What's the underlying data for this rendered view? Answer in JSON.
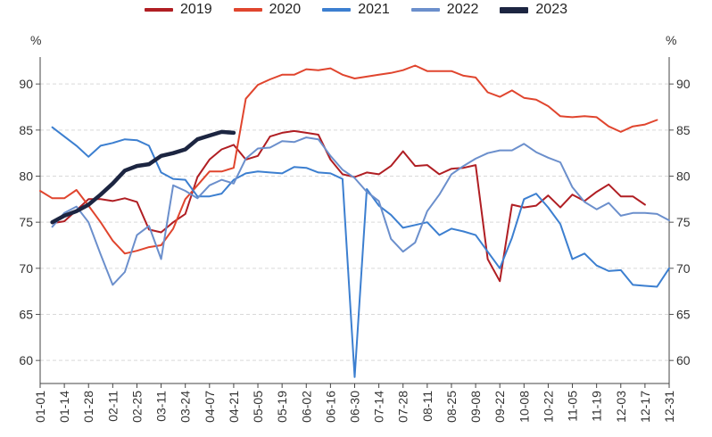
{
  "chart_data": {
    "type": "line",
    "title": "",
    "ylabel_left": "%",
    "ylabel_right": "%",
    "ylim": [
      57.5,
      93.5
    ],
    "yticks": [
      60,
      65,
      70,
      75,
      80,
      85,
      90
    ],
    "grid": "horizontal-dashed",
    "legend_position": "top-center",
    "x_tick_labels": [
      "01-01",
      "01-14",
      "01-28",
      "02-11",
      "02-25",
      "03-11",
      "03-24",
      "04-07",
      "04-21",
      "05-05",
      "05-19",
      "06-02",
      "06-16",
      "06-30",
      "07-14",
      "07-28",
      "08-11",
      "08-25",
      "09-08",
      "09-22",
      "10-08",
      "10-22",
      "11-05",
      "11-19",
      "12-03",
      "12-17",
      "12-31"
    ],
    "series": [
      {
        "name": "2019",
        "color": "#b01e23",
        "width": 2,
        "values": [
          [
            1,
            74.9
          ],
          [
            2,
            75.1
          ],
          [
            3,
            76.3
          ],
          [
            4,
            77.5
          ],
          [
            5,
            77.5
          ],
          [
            6,
            77.3
          ],
          [
            7,
            77.6
          ],
          [
            8,
            77.2
          ],
          [
            9,
            74.2
          ],
          [
            10,
            73.9
          ],
          [
            11,
            75.0
          ],
          [
            12,
            75.9
          ],
          [
            13,
            79.9
          ],
          [
            14,
            81.8
          ],
          [
            15,
            82.9
          ],
          [
            16,
            83.4
          ],
          [
            17,
            81.8
          ],
          [
            18,
            82.2
          ],
          [
            19,
            84.3
          ],
          [
            20,
            84.7
          ],
          [
            21,
            84.9
          ],
          [
            22,
            84.7
          ],
          [
            23,
            84.5
          ],
          [
            24,
            81.8
          ],
          [
            25,
            80.2
          ],
          [
            26,
            79.9
          ],
          [
            27,
            80.4
          ],
          [
            28,
            80.2
          ],
          [
            29,
            81.1
          ],
          [
            30,
            82.7
          ],
          [
            31,
            81.1
          ],
          [
            32,
            81.2
          ],
          [
            33,
            80.2
          ],
          [
            34,
            80.8
          ],
          [
            35,
            80.9
          ],
          [
            36,
            81.2
          ],
          [
            37,
            71.0
          ],
          [
            38,
            68.6
          ],
          [
            39,
            76.9
          ],
          [
            40,
            76.6
          ],
          [
            41,
            76.8
          ],
          [
            42,
            77.9
          ],
          [
            43,
            76.6
          ],
          [
            44,
            78.0
          ],
          [
            45,
            77.3
          ],
          [
            46,
            78.3
          ],
          [
            47,
            79.1
          ],
          [
            48,
            77.8
          ],
          [
            49,
            77.8
          ],
          [
            50,
            76.9
          ]
        ]
      },
      {
        "name": "2020",
        "color": "#e0452e",
        "width": 2,
        "values": [
          [
            0,
            78.4
          ],
          [
            1,
            77.6
          ],
          [
            2,
            77.6
          ],
          [
            3,
            78.5
          ],
          [
            4,
            76.8
          ],
          [
            5,
            75.0
          ],
          [
            6,
            73.0
          ],
          [
            7,
            71.6
          ],
          [
            8,
            71.9
          ],
          [
            9,
            72.3
          ],
          [
            10,
            72.5
          ],
          [
            11,
            74.3
          ],
          [
            12,
            77.5
          ],
          [
            13,
            79.0
          ],
          [
            14,
            80.5
          ],
          [
            15,
            80.5
          ],
          [
            16,
            80.9
          ],
          [
            17,
            88.4
          ],
          [
            18,
            89.9
          ],
          [
            19,
            90.5
          ],
          [
            20,
            91.0
          ],
          [
            21,
            91.0
          ],
          [
            22,
            91.6
          ],
          [
            23,
            91.5
          ],
          [
            24,
            91.7
          ],
          [
            25,
            91.0
          ],
          [
            26,
            90.6
          ],
          [
            27,
            90.8
          ],
          [
            28,
            91.0
          ],
          [
            29,
            91.2
          ],
          [
            30,
            91.5
          ],
          [
            31,
            92.0
          ],
          [
            32,
            91.4
          ],
          [
            33,
            91.4
          ],
          [
            34,
            91.4
          ],
          [
            35,
            90.9
          ],
          [
            36,
            90.7
          ],
          [
            37,
            89.1
          ],
          [
            38,
            88.6
          ],
          [
            39,
            89.3
          ],
          [
            40,
            88.5
          ],
          [
            41,
            88.3
          ],
          [
            42,
            87.6
          ],
          [
            43,
            86.5
          ],
          [
            44,
            86.4
          ],
          [
            45,
            86.5
          ],
          [
            46,
            86.4
          ],
          [
            47,
            85.4
          ],
          [
            48,
            84.8
          ],
          [
            49,
            85.4
          ],
          [
            50,
            85.6
          ],
          [
            51,
            86.1
          ]
        ]
      },
      {
        "name": "2021",
        "color": "#3c7fd0",
        "width": 2,
        "values": [
          [
            1,
            85.3
          ],
          [
            2,
            84.3
          ],
          [
            3,
            83.3
          ],
          [
            4,
            82.1
          ],
          [
            5,
            83.3
          ],
          [
            6,
            83.6
          ],
          [
            7,
            84.0
          ],
          [
            8,
            83.9
          ],
          [
            9,
            83.3
          ],
          [
            10,
            80.4
          ],
          [
            11,
            79.7
          ],
          [
            12,
            79.6
          ],
          [
            13,
            77.8
          ],
          [
            14,
            77.8
          ],
          [
            15,
            78.1
          ],
          [
            16,
            79.6
          ],
          [
            17,
            80.3
          ],
          [
            18,
            80.5
          ],
          [
            19,
            80.4
          ],
          [
            20,
            80.3
          ],
          [
            21,
            81.0
          ],
          [
            22,
            80.9
          ],
          [
            23,
            80.4
          ],
          [
            24,
            80.3
          ],
          [
            25,
            79.7
          ],
          [
            26,
            58.2
          ],
          [
            27,
            78.6
          ],
          [
            28,
            76.8
          ],
          [
            29,
            75.8
          ],
          [
            30,
            74.4
          ],
          [
            31,
            74.7
          ],
          [
            32,
            75.0
          ],
          [
            33,
            73.6
          ],
          [
            34,
            74.3
          ],
          [
            35,
            74.0
          ],
          [
            36,
            73.6
          ],
          [
            37,
            71.8
          ],
          [
            38,
            70.0
          ],
          [
            39,
            73.3
          ],
          [
            40,
            77.5
          ],
          [
            41,
            78.1
          ],
          [
            42,
            76.6
          ],
          [
            43,
            74.8
          ],
          [
            44,
            71.0
          ],
          [
            45,
            71.6
          ],
          [
            46,
            70.3
          ],
          [
            47,
            69.7
          ],
          [
            48,
            69.8
          ],
          [
            49,
            68.2
          ],
          [
            50,
            68.1
          ],
          [
            51,
            68.0
          ],
          [
            52,
            70.0
          ]
        ]
      },
      {
        "name": "2022",
        "color": "#6b8fcc",
        "width": 2,
        "values": [
          [
            1,
            74.5
          ],
          [
            2,
            76.0
          ],
          [
            3,
            76.7
          ],
          [
            4,
            75.0
          ],
          [
            5,
            71.5
          ],
          [
            6,
            68.2
          ],
          [
            7,
            69.6
          ],
          [
            8,
            73.6
          ],
          [
            9,
            74.6
          ],
          [
            10,
            71.0
          ],
          [
            11,
            79.0
          ],
          [
            12,
            78.4
          ],
          [
            13,
            77.6
          ],
          [
            14,
            79.0
          ],
          [
            15,
            79.6
          ],
          [
            16,
            79.2
          ],
          [
            17,
            81.9
          ],
          [
            18,
            83.0
          ],
          [
            19,
            83.1
          ],
          [
            20,
            83.8
          ],
          [
            21,
            83.7
          ],
          [
            22,
            84.2
          ],
          [
            23,
            84.0
          ],
          [
            24,
            82.2
          ],
          [
            25,
            80.7
          ],
          [
            26,
            79.8
          ],
          [
            27,
            78.3
          ],
          [
            28,
            77.3
          ],
          [
            29,
            73.2
          ],
          [
            30,
            71.8
          ],
          [
            31,
            72.8
          ],
          [
            32,
            76.2
          ],
          [
            33,
            78.0
          ],
          [
            34,
            80.2
          ],
          [
            35,
            81.1
          ],
          [
            36,
            81.9
          ],
          [
            37,
            82.5
          ],
          [
            38,
            82.8
          ],
          [
            39,
            82.8
          ],
          [
            40,
            83.5
          ],
          [
            41,
            82.6
          ],
          [
            42,
            82.0
          ],
          [
            43,
            81.5
          ],
          [
            44,
            78.8
          ],
          [
            45,
            77.2
          ],
          [
            46,
            76.4
          ],
          [
            47,
            77.1
          ],
          [
            48,
            75.7
          ],
          [
            49,
            76.0
          ],
          [
            50,
            76.0
          ],
          [
            51,
            75.9
          ],
          [
            52,
            75.2
          ]
        ]
      },
      {
        "name": "2023",
        "color": "#1c2541",
        "width": 4.5,
        "values": [
          [
            1,
            75.0
          ],
          [
            2,
            75.7
          ],
          [
            3,
            76.2
          ],
          [
            4,
            76.9
          ],
          [
            5,
            78.0
          ],
          [
            6,
            79.2
          ],
          [
            7,
            80.6
          ],
          [
            8,
            81.1
          ],
          [
            9,
            81.3
          ],
          [
            10,
            82.2
          ],
          [
            11,
            82.5
          ],
          [
            12,
            82.9
          ],
          [
            13,
            84.0
          ],
          [
            14,
            84.4
          ],
          [
            15,
            84.8
          ],
          [
            16,
            84.7
          ]
        ]
      }
    ]
  }
}
